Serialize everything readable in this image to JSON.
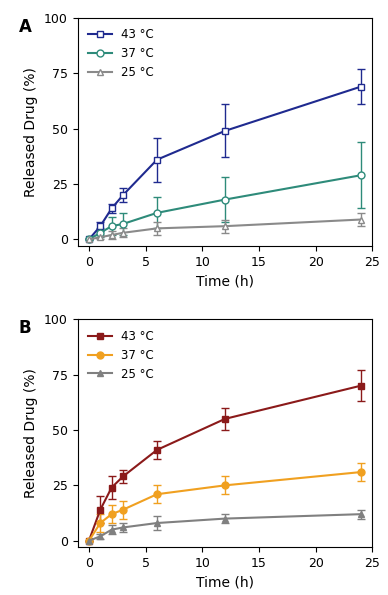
{
  "chart_data": [
    {
      "type": "line",
      "title": "A",
      "x_label": "Time (h)",
      "y_label": "Released Drug (%)",
      "x": [
        0,
        1,
        2,
        3,
        6,
        12,
        24
      ],
      "xlim": [
        -1,
        25
      ],
      "xticks": [
        0,
        5,
        10,
        15,
        20,
        25
      ],
      "ylim": [
        -3,
        100
      ],
      "yticks": [
        0,
        25,
        50,
        75,
        100
      ],
      "legend": "upper left",
      "grid": false,
      "series": [
        {
          "name": "43 °C",
          "color": "#1f2a8f",
          "marker": "open square",
          "line_style": "solid",
          "values": [
            0,
            6,
            14,
            20,
            36,
            49,
            69
          ],
          "errors": [
            0,
            2,
            2,
            3,
            10,
            12,
            8
          ]
        },
        {
          "name": "37 °C",
          "color": "#2e8b7a",
          "marker": "open circle",
          "line_style": "solid",
          "values": [
            0,
            3,
            6,
            7,
            12,
            18,
            29
          ],
          "errors": [
            0,
            2,
            4,
            5,
            7,
            10,
            15
          ]
        },
        {
          "name": "25 °C",
          "color": "#8a8a8a",
          "marker": "open triangle",
          "line_style": "solid",
          "values": [
            0,
            1,
            2,
            3,
            5,
            6,
            9
          ],
          "errors": [
            0,
            1,
            2,
            2,
            3,
            3,
            3
          ]
        }
      ]
    },
    {
      "type": "line",
      "title": "B",
      "x_label": "Time (h)",
      "y_label": "Released Drug (%)",
      "x": [
        0,
        1,
        2,
        3,
        6,
        12,
        24
      ],
      "xlim": [
        -1,
        25
      ],
      "xticks": [
        0,
        5,
        10,
        15,
        20,
        25
      ],
      "ylim": [
        -3,
        100
      ],
      "yticks": [
        0,
        25,
        50,
        75,
        100
      ],
      "legend": "upper left",
      "grid": false,
      "series": [
        {
          "name": "43 °C",
          "color": "#8b1a1a",
          "marker": "square",
          "line_style": "solid",
          "values": [
            0,
            14,
            24,
            29,
            41,
            55,
            70
          ],
          "errors": [
            0,
            6,
            5,
            3,
            4,
            5,
            7
          ]
        },
        {
          "name": "37 °C",
          "color": "#f0a020",
          "marker": "circle",
          "line_style": "solid",
          "values": [
            0,
            8,
            12,
            14,
            21,
            25,
            31
          ],
          "errors": [
            0,
            4,
            4,
            4,
            4,
            4,
            4
          ]
        },
        {
          "name": "25 °C",
          "color": "#808080",
          "marker": "triangle",
          "line_style": "solid",
          "values": [
            0,
            2,
            5,
            6,
            8,
            10,
            12
          ],
          "errors": [
            0,
            1,
            2,
            2,
            3,
            2,
            2
          ]
        }
      ]
    }
  ]
}
